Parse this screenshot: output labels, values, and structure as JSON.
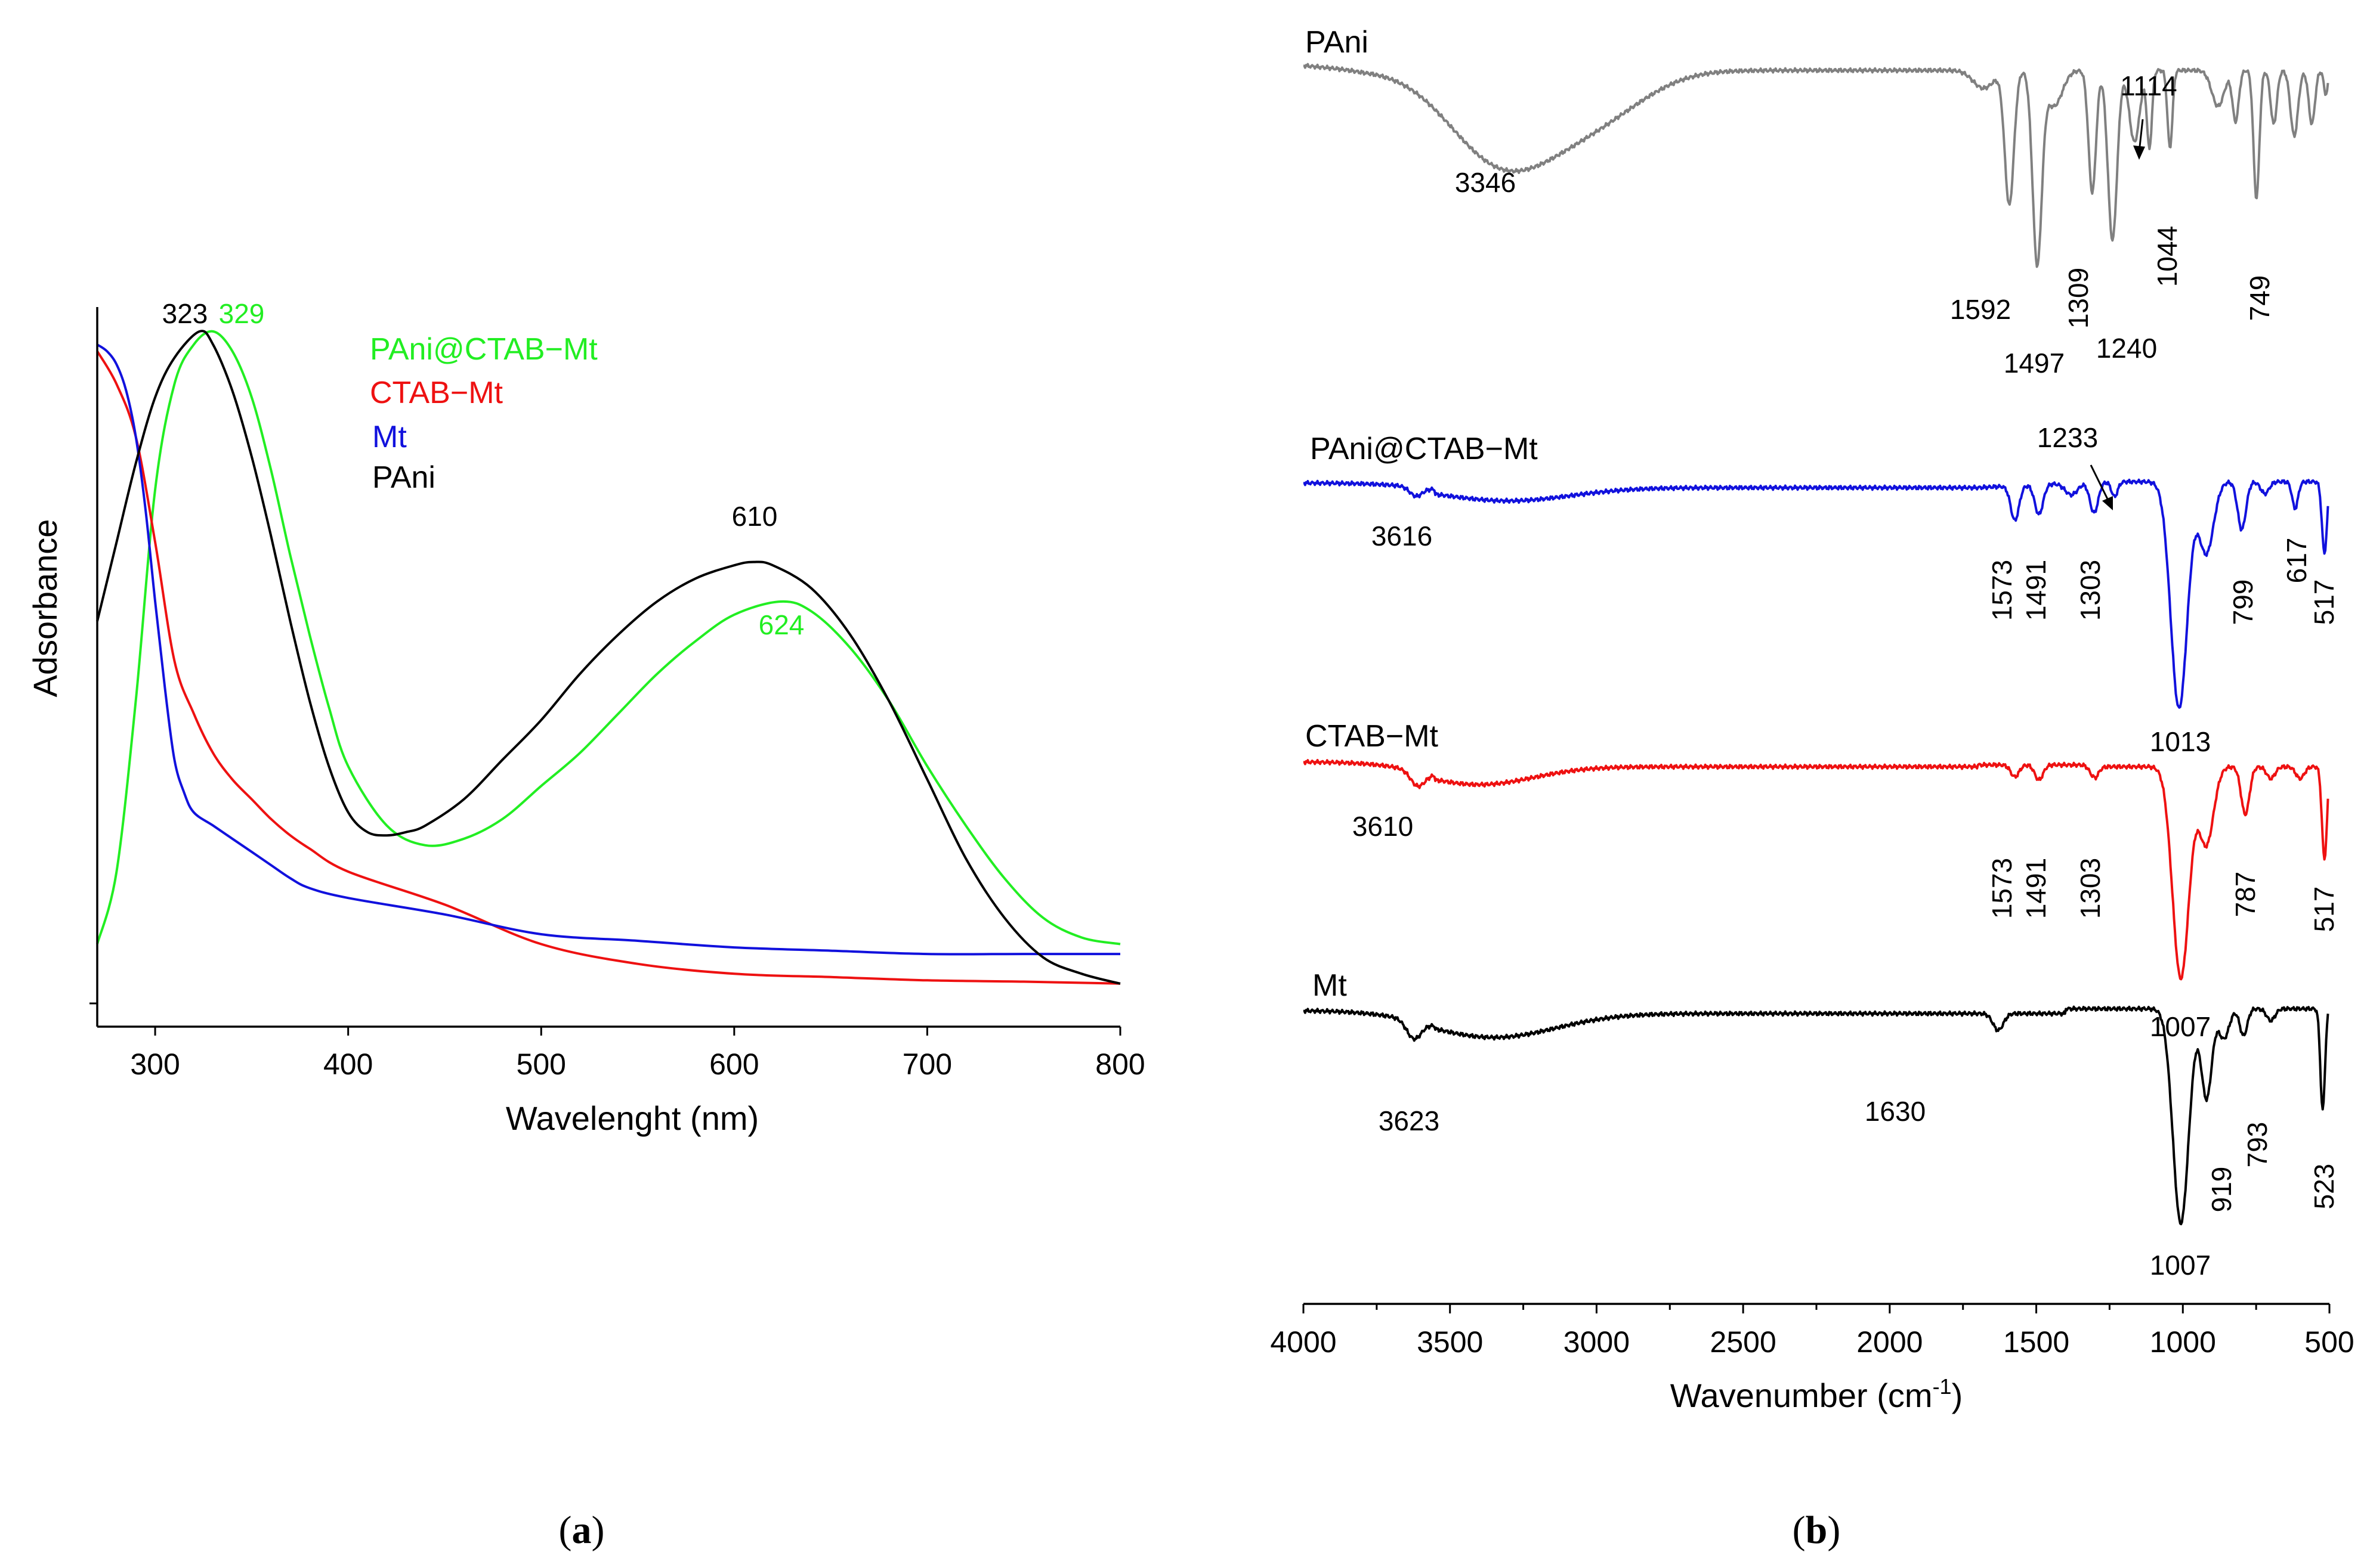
{
  "chart_data": [
    {
      "panel": "(a)",
      "type": "line",
      "xlabel": "Wavelenght (nm)",
      "ylabel": "Adsorbance",
      "xlim": [
        270,
        800
      ],
      "ylim": [
        0,
        1
      ],
      "xticks": [
        300,
        400,
        500,
        600,
        700,
        800
      ],
      "legend": {
        "placement": "top-center",
        "entries": [
          {
            "label": "PAni@CTAB−Mt",
            "color": "#22ee22"
          },
          {
            "label": "CTAB−Mt",
            "color": "#ee1111"
          },
          {
            "label": "Mt",
            "color": "#1111dd"
          },
          {
            "label": "PAni",
            "color": "#000000"
          }
        ]
      },
      "series": [
        {
          "name": "PAni@CTAB−Mt",
          "color": "#22ee22",
          "x": [
            270,
            280,
            290,
            300,
            310,
            320,
            330,
            340,
            350,
            360,
            370,
            380,
            390,
            400,
            420,
            440,
            460,
            480,
            500,
            520,
            540,
            560,
            580,
            600,
            624,
            640,
            660,
            680,
            700,
            720,
            740,
            760,
            780,
            800
          ],
          "y": [
            0.09,
            0.2,
            0.46,
            0.78,
            0.94,
            1.0,
            1.02,
            0.99,
            0.92,
            0.81,
            0.68,
            0.56,
            0.45,
            0.36,
            0.27,
            0.24,
            0.25,
            0.28,
            0.33,
            0.38,
            0.44,
            0.5,
            0.55,
            0.59,
            0.61,
            0.595,
            0.54,
            0.46,
            0.36,
            0.27,
            0.19,
            0.13,
            0.1,
            0.09
          ]
        },
        {
          "name": "CTAB−Mt",
          "color": "#ee1111",
          "x": [
            270,
            280,
            290,
            300,
            310,
            320,
            330,
            340,
            350,
            360,
            370,
            380,
            400,
            450,
            500,
            550,
            600,
            650,
            700,
            750,
            800
          ],
          "y": [
            0.99,
            0.94,
            0.86,
            0.7,
            0.52,
            0.44,
            0.38,
            0.34,
            0.31,
            0.28,
            0.255,
            0.235,
            0.2,
            0.15,
            0.09,
            0.06,
            0.045,
            0.04,
            0.035,
            0.033,
            0.03
          ],
          "smooth": "true"
        },
        {
          "name": "Mt",
          "color": "#1111dd",
          "x": [
            270,
            275,
            280,
            285,
            290,
            295,
            300,
            305,
            310,
            315,
            320,
            330,
            340,
            350,
            360,
            370,
            380,
            400,
            450,
            500,
            550,
            600,
            650,
            700,
            750,
            800
          ],
          "y": [
            1.0,
            0.99,
            0.97,
            0.93,
            0.86,
            0.75,
            0.61,
            0.48,
            0.37,
            0.32,
            0.29,
            0.27,
            0.25,
            0.23,
            0.21,
            0.19,
            0.175,
            0.16,
            0.135,
            0.105,
            0.095,
            0.085,
            0.08,
            0.075,
            0.075,
            0.075
          ]
        },
        {
          "name": "PAni",
          "color": "#000000",
          "x": [
            270,
            280,
            290,
            300,
            310,
            323,
            330,
            340,
            350,
            360,
            370,
            380,
            390,
            400,
            410,
            420,
            430,
            440,
            460,
            480,
            500,
            520,
            540,
            560,
            580,
            600,
            610,
            620,
            640,
            660,
            680,
            700,
            720,
            740,
            760,
            780,
            800
          ],
          "y": [
            0.58,
            0.7,
            0.82,
            0.92,
            0.98,
            1.02,
            1.0,
            0.93,
            0.83,
            0.71,
            0.58,
            0.46,
            0.36,
            0.29,
            0.26,
            0.255,
            0.26,
            0.27,
            0.31,
            0.37,
            0.43,
            0.5,
            0.56,
            0.61,
            0.645,
            0.665,
            0.67,
            0.665,
            0.63,
            0.56,
            0.46,
            0.34,
            0.22,
            0.13,
            0.07,
            0.045,
            0.03
          ]
        }
      ],
      "annotations": [
        {
          "text": "323",
          "x": 323,
          "color": "#000000"
        },
        {
          "text": "329",
          "x": 329,
          "color": "#22ee22"
        },
        {
          "text": "610",
          "x": 610,
          "color": "#000000"
        },
        {
          "text": "624",
          "x": 624,
          "color": "#22ee22"
        }
      ]
    },
    {
      "panel": "(b)",
      "type": "line",
      "xlabel": "Wavenumber (cm",
      "xlabel_sup": "-1",
      "xlabel_end": ")",
      "xlim": [
        4000,
        500
      ],
      "xticks": [
        4000,
        3500,
        3000,
        2500,
        2000,
        1500,
        1000,
        500
      ],
      "series": [
        {
          "name": "PAni",
          "color": "#808080",
          "peaks": [
            "3346",
            "1592",
            "1497",
            "1309",
            "1240",
            "1114",
            "1044",
            "749"
          ]
        },
        {
          "name": "PAni@CTAB−Mt",
          "color": "#1111dd",
          "peaks": [
            "3616",
            "1573",
            "1491",
            "1303",
            "1233",
            "1013",
            "799",
            "617",
            "517"
          ]
        },
        {
          "name": "CTAB−Mt",
          "color": "#ee1111",
          "peaks": [
            "3610",
            "1573",
            "1491",
            "1303",
            "1007",
            "787",
            "517"
          ]
        },
        {
          "name": "Mt",
          "color": "#000000",
          "peaks": [
            "3623",
            "1630",
            "1007",
            "919",
            "793",
            "523"
          ]
        }
      ]
    }
  ]
}
